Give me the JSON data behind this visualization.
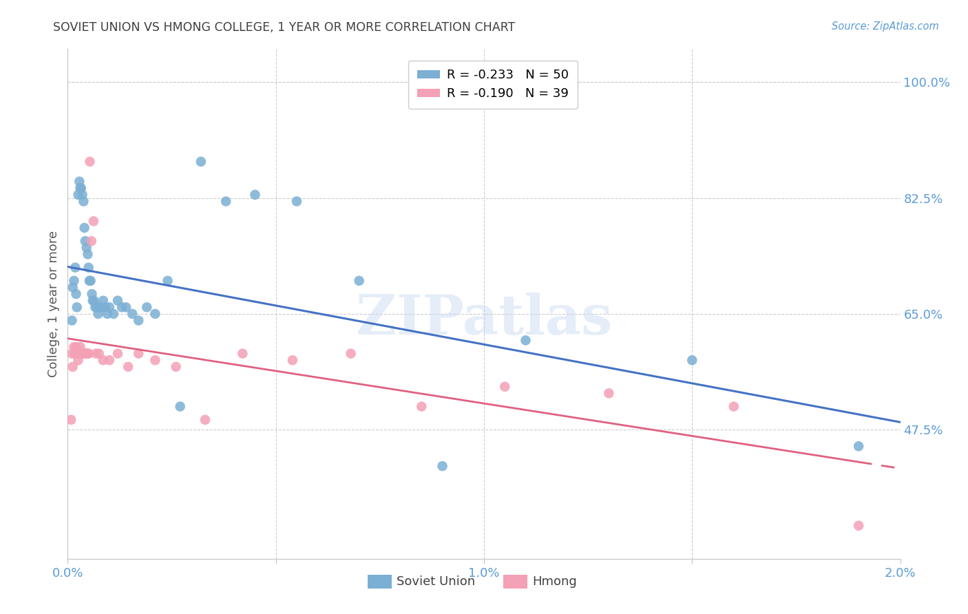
{
  "title": "SOVIET UNION VS HMONG COLLEGE, 1 YEAR OR MORE CORRELATION CHART",
  "source": "Source: ZipAtlas.com",
  "ylabel": "College, 1 year or more",
  "xlim": [
    0.0,
    0.02
  ],
  "ylim": [
    0.28,
    1.05
  ],
  "yticks": [
    0.475,
    0.65,
    0.825,
    1.0
  ],
  "ytick_labels": [
    "47.5%",
    "65.0%",
    "82.5%",
    "100.0%"
  ],
  "xticks": [
    0.0,
    0.005,
    0.01,
    0.015,
    0.02
  ],
  "xtick_labels": [
    "0.0%",
    "",
    "1.0%",
    "",
    "2.0%"
  ],
  "legend_entries": [
    {
      "label": "R = -0.233   N = 50",
      "color": "#7bafd4"
    },
    {
      "label": "R = -0.190   N = 39",
      "color": "#f4a0b5"
    }
  ],
  "watermark": "ZIPatlas",
  "soviet_scatter_x": [
    0.0001,
    0.00012,
    0.00015,
    0.00018,
    0.0002,
    0.00022,
    0.00025,
    0.00028,
    0.0003,
    0.00032,
    0.00035,
    0.00038,
    0.0004,
    0.00042,
    0.00045,
    0.00048,
    0.0005,
    0.00052,
    0.00055,
    0.00058,
    0.0006,
    0.00063,
    0.00066,
    0.0007,
    0.00073,
    0.00076,
    0.0008,
    0.00085,
    0.0009,
    0.00095,
    0.001,
    0.0011,
    0.0012,
    0.0013,
    0.0014,
    0.00155,
    0.0017,
    0.0019,
    0.0021,
    0.0024,
    0.0027,
    0.0032,
    0.0038,
    0.0045,
    0.0055,
    0.007,
    0.009,
    0.011,
    0.015,
    0.019
  ],
  "soviet_scatter_y": [
    0.64,
    0.69,
    0.7,
    0.72,
    0.68,
    0.66,
    0.83,
    0.85,
    0.84,
    0.84,
    0.83,
    0.82,
    0.78,
    0.76,
    0.75,
    0.74,
    0.72,
    0.7,
    0.7,
    0.68,
    0.67,
    0.67,
    0.66,
    0.66,
    0.65,
    0.66,
    0.66,
    0.67,
    0.66,
    0.65,
    0.66,
    0.65,
    0.67,
    0.66,
    0.66,
    0.65,
    0.64,
    0.66,
    0.65,
    0.7,
    0.51,
    0.88,
    0.82,
    0.83,
    0.82,
    0.7,
    0.42,
    0.61,
    0.58,
    0.45
  ],
  "hmong_scatter_x": [
    8e-05,
    0.0001,
    0.00012,
    0.00015,
    0.00018,
    0.0002,
    0.00022,
    0.00025,
    0.00028,
    0.0003,
    0.00032,
    0.00035,
    0.00038,
    0.0004,
    0.00042,
    0.00045,
    0.00048,
    0.0005,
    0.00053,
    0.00057,
    0.00062,
    0.00068,
    0.00075,
    0.00085,
    0.001,
    0.0012,
    0.00145,
    0.0017,
    0.0021,
    0.0026,
    0.0033,
    0.0042,
    0.0054,
    0.0068,
    0.0085,
    0.0105,
    0.013,
    0.016,
    0.019
  ],
  "hmong_scatter_y": [
    0.49,
    0.59,
    0.57,
    0.6,
    0.59,
    0.6,
    0.59,
    0.58,
    0.59,
    0.6,
    0.59,
    0.59,
    0.59,
    0.59,
    0.59,
    0.59,
    0.59,
    0.59,
    0.88,
    0.76,
    0.79,
    0.59,
    0.59,
    0.58,
    0.58,
    0.59,
    0.57,
    0.59,
    0.58,
    0.57,
    0.49,
    0.59,
    0.58,
    0.59,
    0.51,
    0.54,
    0.53,
    0.51,
    0.33
  ],
  "soviet_color": "#7bafd4",
  "hmong_color": "#f4a0b5",
  "soviet_line_color": "#4472c4",
  "hmong_line_color": "#e06080",
  "background_color": "#ffffff",
  "grid_color": "#cccccc",
  "axis_color": "#cccccc",
  "tick_label_color": "#5b9bd5",
  "title_color": "#404040",
  "ylabel_color": "#595959"
}
